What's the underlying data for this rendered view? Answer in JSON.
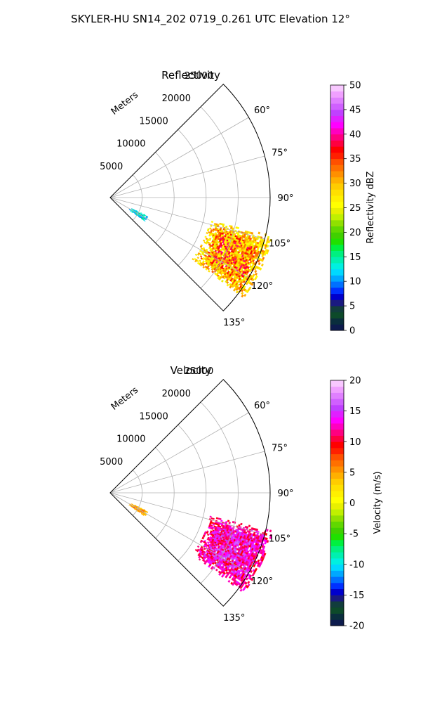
{
  "figure": {
    "title": "SKYLER-HU  SN14_202  0719_0.261 UTC Elevation 12°"
  },
  "chart_data": [
    {
      "type": "heatmap",
      "subtype": "radar-ppi-polar-sector",
      "title": "Reflectivity",
      "range_label": "Meters",
      "range_ticks": [
        5000,
        10000,
        15000,
        20000,
        25000
      ],
      "range_max": 25000,
      "azimuth_ticks": [
        "60°",
        "75°",
        "90°",
        "105°",
        "120°",
        "135°"
      ],
      "azimuth_range": [
        45,
        135
      ],
      "colorbar": {
        "label": "Reflectivity dBZ",
        "min": 0,
        "max": 50,
        "ticks": [
          0,
          5,
          10,
          15,
          20,
          25,
          30,
          35,
          40,
          45,
          50
        ],
        "colors": [
          "#0d1b4d",
          "#0a2e3d",
          "#0d4a2a",
          "#123d3d",
          "#1a1a80",
          "#0000cc",
          "#0030ff",
          "#0070ff",
          "#00a8ff",
          "#00d8ff",
          "#00f0e0",
          "#00f0b0",
          "#00f080",
          "#00f040",
          "#20e000",
          "#40d000",
          "#60d800",
          "#90e000",
          "#c0f000",
          "#e8f000",
          "#ffff00",
          "#fff000",
          "#ffe000",
          "#ffcc00",
          "#ffb000",
          "#ff9000",
          "#ff7000",
          "#ff5000",
          "#ff2000",
          "#ff0000",
          "#ff0040",
          "#ff0080",
          "#ff00c0",
          "#ff00ff",
          "#e020ff",
          "#c040ff",
          "#d060ff",
          "#e080ff",
          "#f0a0ff",
          "#f8c8ff"
        ]
      },
      "echo_regions": [
        {
          "range_m": [
            3500,
            6500
          ],
          "azimuth_deg": [
            116,
            124
          ],
          "value_range": [
            5,
            18
          ]
        },
        {
          "range_m": [
            16000,
            26000
          ],
          "azimuth_deg": [
            103,
            127
          ],
          "value_range": [
            15,
            40
          ]
        }
      ]
    },
    {
      "type": "heatmap",
      "subtype": "radar-ppi-polar-sector",
      "title": "Velocity",
      "range_label": "Meters",
      "range_ticks": [
        5000,
        10000,
        15000,
        20000,
        25000
      ],
      "range_max": 25000,
      "azimuth_ticks": [
        "60°",
        "75°",
        "90°",
        "105°",
        "120°",
        "135°"
      ],
      "azimuth_range": [
        45,
        135
      ],
      "colorbar": {
        "label": "Velocity (m/s)",
        "min": -20,
        "max": 20,
        "ticks": [
          -20,
          -15,
          -10,
          -5,
          0,
          5,
          10,
          15,
          20
        ],
        "colors": [
          "#0d1b4d",
          "#0a2e3d",
          "#0d4a2a",
          "#123d3d",
          "#1a1a80",
          "#0000cc",
          "#0030ff",
          "#0070ff",
          "#00a8ff",
          "#00d8ff",
          "#00f0e0",
          "#00f0b0",
          "#00f080",
          "#00f040",
          "#20e000",
          "#40d000",
          "#60d800",
          "#90e000",
          "#c0f000",
          "#e8f000",
          "#ffff00",
          "#fff000",
          "#ffe000",
          "#ffcc00",
          "#ffb000",
          "#ff9000",
          "#ff7000",
          "#ff5000",
          "#ff2000",
          "#ff0000",
          "#ff0040",
          "#ff0080",
          "#ff00c0",
          "#ff00ff",
          "#e020ff",
          "#c040ff",
          "#d060ff",
          "#e080ff",
          "#f0a0ff",
          "#f8c8ff"
        ]
      },
      "echo_regions": [
        {
          "range_m": [
            3500,
            6500
          ],
          "azimuth_deg": [
            116,
            124
          ],
          "value_range": [
            0,
            8
          ]
        },
        {
          "range_m": [
            16000,
            26000
          ],
          "azimuth_deg": [
            103,
            127
          ],
          "value_range": [
            5,
            17
          ]
        }
      ]
    }
  ]
}
